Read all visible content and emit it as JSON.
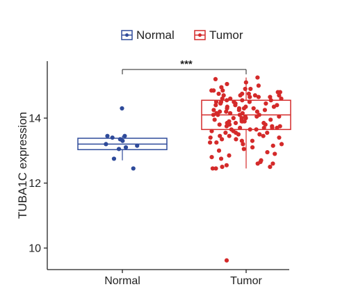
{
  "chart_data": {
    "type": "box",
    "ylabel": "TUBA1C expression",
    "xlabel": "",
    "categories": [
      "Normal",
      "Tumor"
    ],
    "ylim": [
      9.5,
      15.8
    ],
    "yticks": [
      10,
      12,
      14
    ],
    "legend": {
      "placement": "top-center",
      "entries": [
        "Normal",
        "Tumor"
      ]
    },
    "significance": {
      "label": "***",
      "between": [
        "Normal",
        "Tumor"
      ]
    },
    "series": [
      {
        "name": "Normal",
        "color": "#2e4a9a",
        "box": {
          "whisker_low": 12.7,
          "q1": 13.03,
          "median": 13.2,
          "q3": 13.38,
          "whisker_high": 13.45
        },
        "points": [
          14.3,
          13.45,
          13.45,
          13.4,
          13.35,
          13.3,
          13.2,
          13.15,
          13.1,
          13.05,
          12.75,
          12.45
        ]
      },
      {
        "name": "Tumor",
        "color": "#d42a2a",
        "box": {
          "whisker_low": 12.45,
          "q1": 13.65,
          "median": 14.1,
          "q3": 14.55,
          "whisker_high": 15.25
        },
        "points": [
          15.25,
          15.2,
          15.1,
          15.05,
          15.0,
          14.95,
          14.9,
          14.9,
          14.85,
          14.85,
          14.8,
          14.8,
          14.75,
          14.75,
          14.7,
          14.7,
          14.7,
          14.65,
          14.65,
          14.6,
          14.6,
          14.6,
          14.55,
          14.55,
          14.5,
          14.5,
          14.5,
          14.45,
          14.45,
          14.4,
          14.4,
          14.4,
          14.35,
          14.35,
          14.3,
          14.3,
          14.3,
          14.25,
          14.25,
          14.2,
          14.2,
          14.2,
          14.15,
          14.15,
          14.1,
          14.1,
          14.1,
          14.05,
          14.05,
          14.0,
          14.0,
          14.0,
          13.95,
          13.95,
          13.9,
          13.9,
          13.9,
          13.85,
          13.85,
          13.8,
          13.8,
          13.8,
          13.75,
          13.75,
          13.7,
          13.7,
          13.7,
          13.65,
          13.65,
          13.6,
          13.6,
          13.55,
          13.55,
          13.5,
          13.5,
          13.45,
          13.45,
          13.4,
          13.4,
          13.35,
          13.3,
          13.3,
          13.25,
          13.2,
          13.2,
          13.15,
          13.1,
          13.05,
          13.0,
          12.95,
          12.9,
          12.85,
          12.8,
          12.75,
          12.7,
          12.65,
          12.6,
          12.6,
          12.55,
          12.5,
          12.5,
          12.45,
          12.45,
          14.85,
          14.75,
          14.65,
          14.55,
          14.45,
          14.35,
          14.25,
          14.15,
          14.05,
          13.95,
          13.85,
          13.75,
          13.65,
          13.55,
          13.45,
          13.35,
          13.25,
          14.7,
          14.5,
          14.3,
          14.1,
          13.9,
          13.7,
          9.62
        ]
      }
    ]
  }
}
